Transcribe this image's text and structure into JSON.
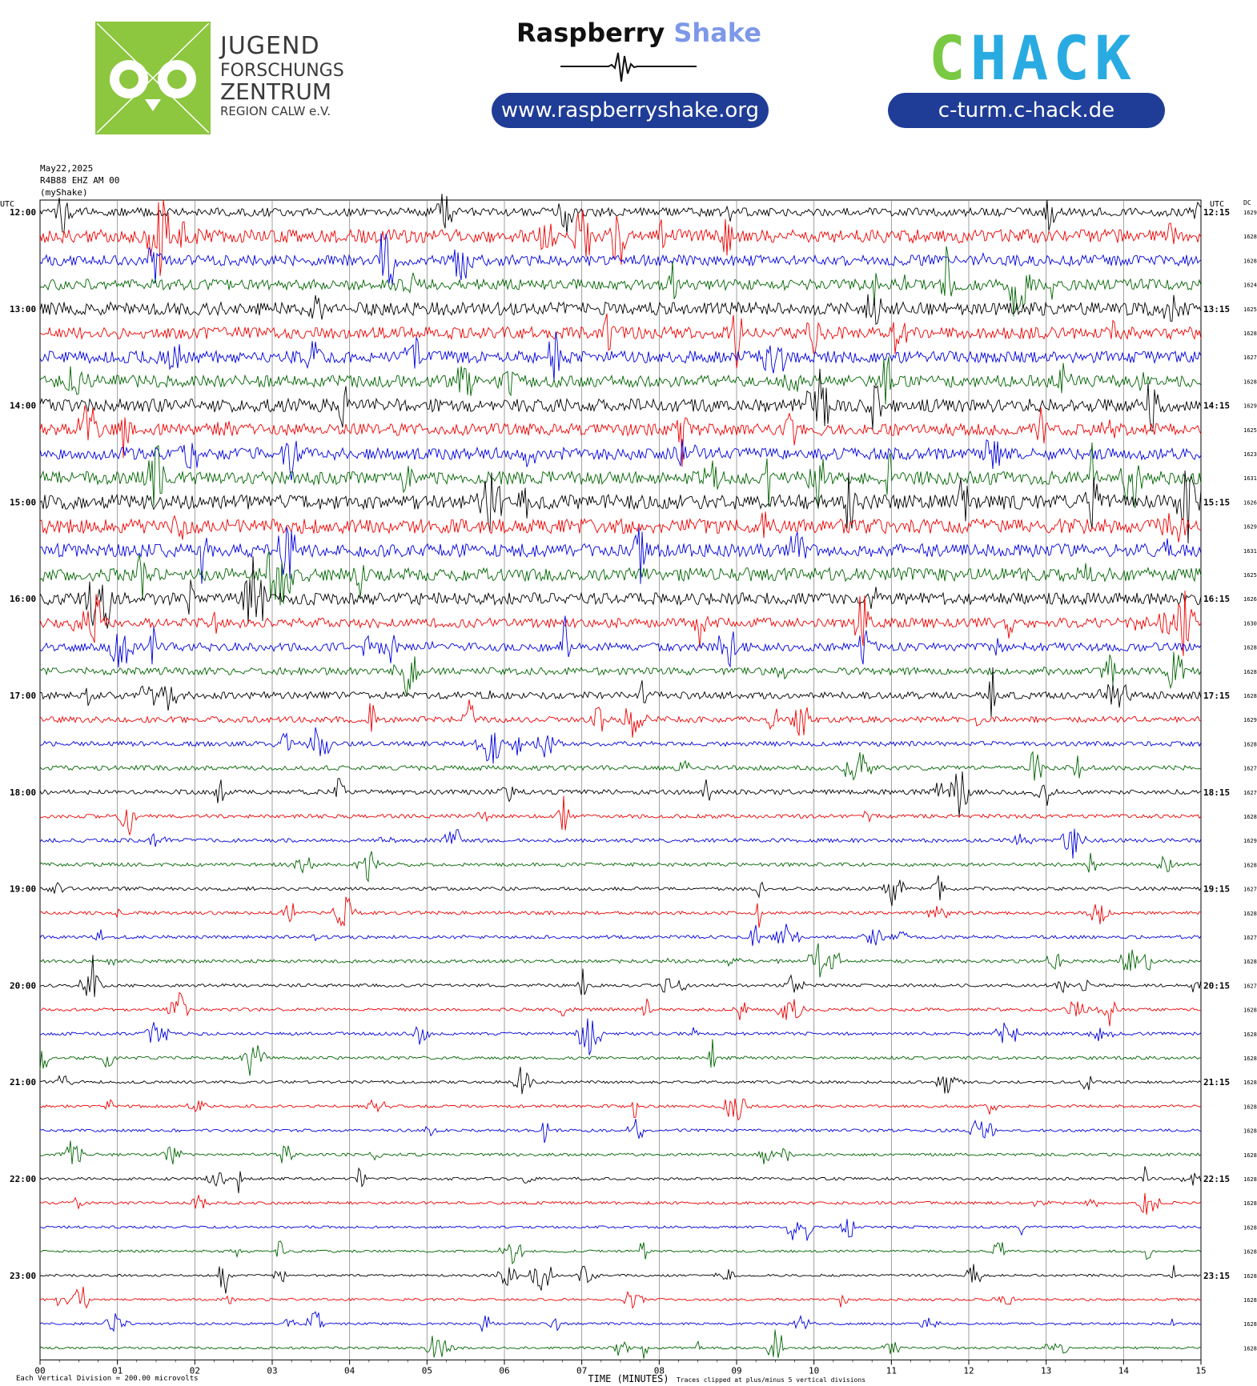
{
  "header": {
    "jfz_lines": [
      "JUGEND",
      "FORSCHUNGS",
      "ZENTRUM",
      "REGION CALW e.V."
    ],
    "rs_brand_main": "Raspberry",
    "rs_brand_accent": "Shake",
    "rs_url": "www.raspberryshake.org",
    "chack_left": "C",
    "chack_right": "HACK",
    "chack_url": "c-turm.c-hack.de",
    "colors": {
      "jfz_green": "#8dc63f",
      "pill_blue": "#1f3c96",
      "rs_accent": "#7d98e8",
      "chack_green": "#7ac943",
      "chack_blue": "#29abe2"
    }
  },
  "meta": {
    "date": "May22,2025",
    "station": "R4B88 EHZ AM 00",
    "source": "(myShake)"
  },
  "chart_data": {
    "type": "helicorder",
    "left_label": "UTC",
    "right_label": "UTC",
    "dc_label": "DC",
    "x_axis_label": "TIME (MINUTES)",
    "xlim": [
      0,
      15
    ],
    "x_ticks": [
      "00",
      "01",
      "02",
      "03",
      "04",
      "05",
      "06",
      "07",
      "08",
      "09",
      "10",
      "11",
      "12",
      "13",
      "14",
      "15"
    ],
    "left_hour_labels": [
      "12:00",
      "13:00",
      "14:00",
      "15:00",
      "16:00",
      "17:00",
      "18:00",
      "19:00",
      "20:00",
      "21:00",
      "22:00",
      "23:00"
    ],
    "right_hour_labels": [
      "12:15",
      "13:15",
      "14:15",
      "15:15",
      "16:15",
      "17:15",
      "18:15",
      "19:15",
      "20:15",
      "21:15",
      "22:15",
      "23:15"
    ],
    "trace_colors": [
      "#000000",
      "#ee0000",
      "#0000dd",
      "#006400"
    ],
    "dc_offsets": [
      16293,
      16280,
      16282,
      16243,
      16257,
      16283,
      16277,
      16282,
      16290,
      16257,
      16230,
      16312,
      16261,
      16296,
      16310,
      16259,
      16266,
      16303,
      16280,
      16282,
      16283,
      16298,
      16286,
      16277,
      16272,
      16285,
      16295,
      16281,
      16278,
      16282,
      16276,
      16287,
      16278,
      16282,
      16284,
      16282,
      16283,
      16286,
      16285,
      16282,
      16283,
      16286,
      16287,
      16287,
      16285,
      16285,
      16287,
      16286
    ],
    "amplitude_profile": [
      0.35,
      0.55,
      0.45,
      0.45,
      0.55,
      0.5,
      0.5,
      0.5,
      0.55,
      0.5,
      0.5,
      0.55,
      0.6,
      0.6,
      0.55,
      0.55,
      0.5,
      0.4,
      0.35,
      0.3,
      0.3,
      0.25,
      0.2,
      0.2,
      0.2,
      0.16,
      0.16,
      0.15,
      0.15,
      0.14,
      0.14,
      0.14,
      0.13,
      0.13,
      0.13,
      0.13,
      0.12,
      0.12,
      0.12,
      0.12,
      0.12,
      0.12,
      0.1,
      0.1,
      0.1,
      0.1,
      0.1,
      0.1
    ],
    "scale_note": "Each Vertical Division =  200.00 microvolts",
    "clip_note": "Traces clipped at plus/minus 5 vertical divisions"
  }
}
